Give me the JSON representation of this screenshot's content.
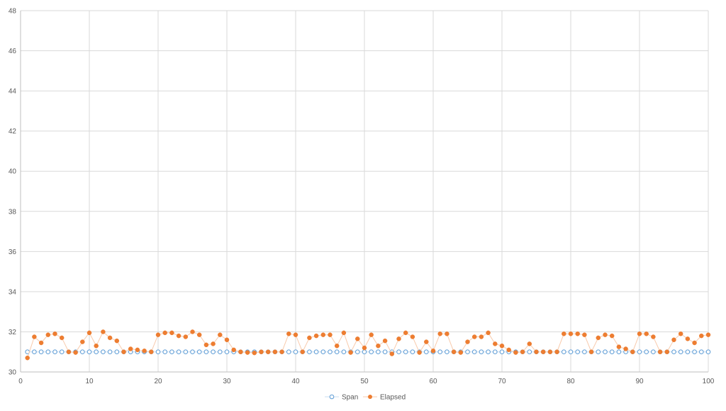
{
  "chart_data": {
    "type": "scatter",
    "title": "",
    "xlabel": "",
    "ylabel": "",
    "xlim": [
      0,
      100
    ],
    "ylim": [
      30,
      48
    ],
    "x_ticks": [
      0,
      10,
      20,
      30,
      40,
      50,
      60,
      70,
      80,
      90,
      100
    ],
    "y_ticks": [
      30,
      32,
      34,
      36,
      38,
      40,
      42,
      44,
      46,
      48
    ],
    "grid": true,
    "legend_position": "bottom",
    "series": [
      {
        "name": "Span",
        "color": "#5b9bd5",
        "marker": "hollow-circle",
        "line": true,
        "x": [
          1,
          2,
          3,
          4,
          5,
          6,
          7,
          8,
          9,
          10,
          11,
          12,
          13,
          14,
          15,
          16,
          17,
          18,
          19,
          20,
          21,
          22,
          23,
          24,
          25,
          26,
          27,
          28,
          29,
          30,
          31,
          32,
          33,
          34,
          35,
          36,
          37,
          38,
          39,
          40,
          41,
          42,
          43,
          44,
          45,
          46,
          47,
          48,
          49,
          50,
          51,
          52,
          53,
          54,
          55,
          56,
          57,
          58,
          59,
          60,
          61,
          62,
          63,
          64,
          65,
          66,
          67,
          68,
          69,
          70,
          71,
          72,
          73,
          74,
          75,
          76,
          77,
          78,
          79,
          80,
          81,
          82,
          83,
          84,
          85,
          86,
          87,
          88,
          89,
          90,
          91,
          92,
          93,
          94,
          95,
          96,
          97,
          98,
          99,
          100
        ],
        "y": [
          31,
          31,
          31,
          31,
          31,
          31,
          31,
          31,
          31,
          31,
          31,
          31,
          31,
          31,
          31,
          31,
          31,
          31,
          31,
          31,
          31,
          31,
          31,
          31,
          31,
          31,
          31,
          31,
          31,
          31,
          31,
          31,
          31,
          31,
          31,
          31,
          31,
          31,
          31,
          31,
          31,
          31,
          31,
          31,
          31,
          31,
          31,
          31,
          31,
          31,
          31,
          31,
          31,
          31,
          31,
          31,
          31,
          31,
          31,
          31,
          31,
          31,
          31,
          31,
          31,
          31,
          31,
          31,
          31,
          31,
          31,
          31,
          31,
          31,
          31,
          31,
          31,
          31,
          31,
          31,
          31,
          31,
          31,
          31,
          31,
          31,
          31,
          31,
          31,
          31,
          31,
          31,
          31,
          31,
          31,
          31,
          31,
          31,
          31,
          31
        ]
      },
      {
        "name": "Elapsed",
        "color": "#ed7d31",
        "marker": "filled-circle",
        "line": true,
        "x": [
          1,
          2,
          3,
          4,
          5,
          6,
          7,
          8,
          9,
          10,
          11,
          12,
          13,
          14,
          15,
          16,
          17,
          18,
          19,
          20,
          21,
          22,
          23,
          24,
          25,
          26,
          27,
          28,
          29,
          30,
          31,
          32,
          33,
          34,
          35,
          36,
          37,
          38,
          39,
          40,
          41,
          42,
          43,
          44,
          45,
          46,
          47,
          48,
          49,
          50,
          51,
          52,
          53,
          54,
          55,
          56,
          57,
          58,
          59,
          60,
          61,
          62,
          63,
          64,
          65,
          66,
          67,
          68,
          69,
          70,
          71,
          72,
          73,
          74,
          75,
          76,
          77,
          78,
          79,
          80,
          81,
          82,
          83,
          84,
          85,
          86,
          87,
          88,
          89,
          90,
          91,
          92,
          93,
          94,
          95,
          96,
          97,
          98,
          99,
          100
        ],
        "y": [
          30.7,
          31.75,
          31.45,
          31.85,
          31.9,
          31.7,
          31.0,
          30.97,
          31.5,
          31.95,
          31.3,
          32.0,
          31.7,
          31.55,
          31.0,
          31.15,
          31.1,
          31.05,
          31.0,
          31.85,
          31.95,
          31.95,
          31.8,
          31.75,
          32.0,
          31.85,
          31.35,
          31.4,
          31.85,
          31.6,
          31.1,
          31.0,
          30.97,
          30.95,
          31.0,
          31.0,
          31.0,
          31.0,
          31.9,
          31.85,
          31.0,
          31.7,
          31.8,
          31.85,
          31.85,
          31.3,
          31.95,
          30.97,
          31.65,
          31.2,
          31.85,
          31.3,
          31.55,
          30.9,
          31.65,
          31.95,
          31.75,
          30.97,
          31.5,
          31.05,
          31.9,
          31.9,
          31.0,
          30.97,
          31.5,
          31.75,
          31.75,
          31.95,
          31.4,
          31.3,
          31.1,
          30.97,
          31.0,
          31.4,
          31.0,
          31.0,
          31.0,
          31.0,
          31.9,
          31.9,
          31.9,
          31.85,
          31.0,
          31.7,
          31.85,
          31.8,
          31.25,
          31.15,
          31.0,
          31.9,
          31.9,
          31.75,
          31.0,
          31.0,
          31.6,
          31.9,
          31.65,
          31.45,
          31.8,
          31.85
        ]
      }
    ]
  }
}
